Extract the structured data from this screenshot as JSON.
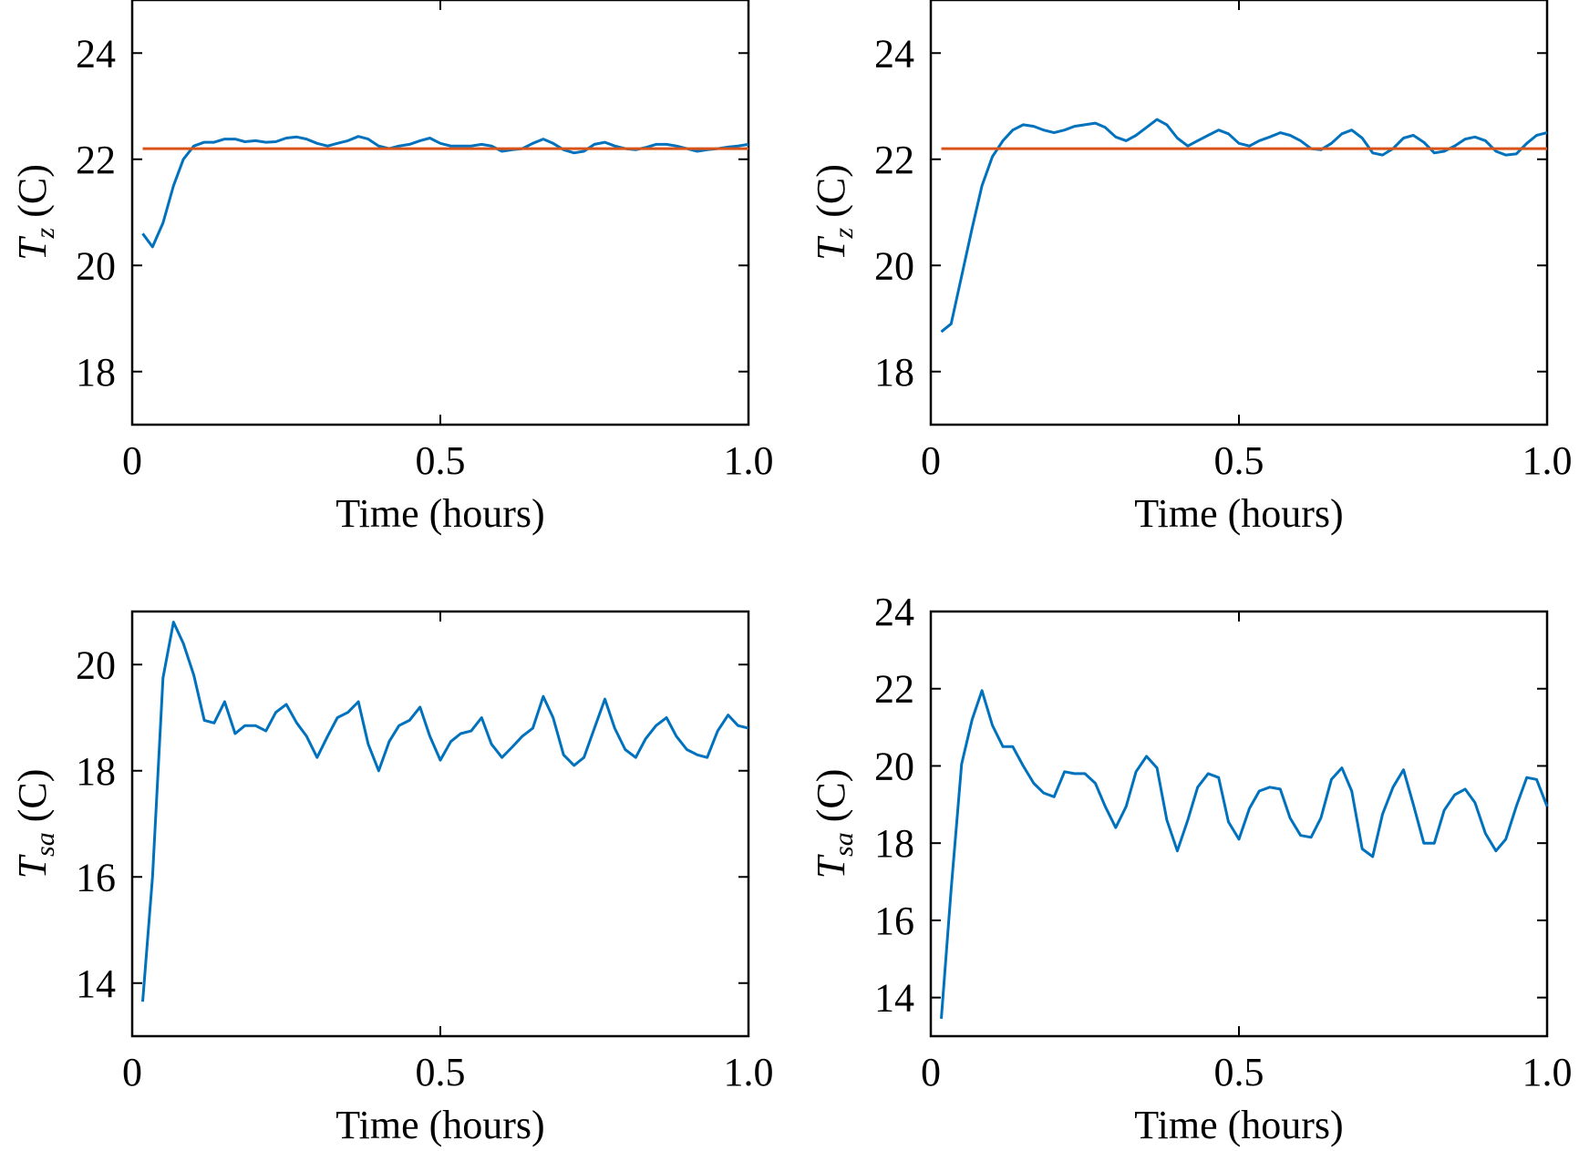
{
  "chart_data": [
    {
      "type": "line",
      "panel": "top-left",
      "xlabel": "Time (hours)",
      "ylabel": {
        "main": "T",
        "sub": "z",
        "unit": " (C)"
      },
      "xlim": [
        0,
        1.0
      ],
      "ylim": [
        17,
        25
      ],
      "xticks": [
        0,
        0.5,
        1.0
      ],
      "xtick_labels": [
        "0",
        "0.5",
        "1.0"
      ],
      "yticks": [
        18,
        20,
        22,
        24
      ],
      "ytick_labels": [
        "18",
        "20",
        "22",
        "24"
      ],
      "grid": false,
      "series": [
        {
          "color": "#0072BD",
          "x": [
            0.017,
            0.033,
            0.05,
            0.067,
            0.083,
            0.1,
            0.117,
            0.133,
            0.15,
            0.167,
            0.183,
            0.2,
            0.217,
            0.233,
            0.25,
            0.267,
            0.283,
            0.3,
            0.317,
            0.333,
            0.35,
            0.367,
            0.383,
            0.4,
            0.417,
            0.433,
            0.45,
            0.467,
            0.483,
            0.5,
            0.517,
            0.533,
            0.55,
            0.567,
            0.583,
            0.6,
            0.617,
            0.633,
            0.65,
            0.667,
            0.683,
            0.7,
            0.717,
            0.733,
            0.75,
            0.767,
            0.783,
            0.8,
            0.817,
            0.833,
            0.85,
            0.867,
            0.883,
            0.9,
            0.917,
            0.933,
            0.95,
            0.967,
            0.983,
            1.0
          ],
          "y": [
            20.6,
            20.35,
            20.8,
            21.5,
            22.0,
            22.25,
            22.32,
            22.32,
            22.38,
            22.38,
            22.33,
            22.35,
            22.32,
            22.33,
            22.4,
            22.42,
            22.38,
            22.3,
            22.25,
            22.3,
            22.35,
            22.43,
            22.38,
            22.25,
            22.2,
            22.25,
            22.28,
            22.35,
            22.4,
            22.3,
            22.25,
            22.25,
            22.25,
            22.28,
            22.25,
            22.15,
            22.18,
            22.2,
            22.3,
            22.38,
            22.3,
            22.18,
            22.12,
            22.15,
            22.28,
            22.32,
            22.25,
            22.2,
            22.18,
            22.22,
            22.28,
            22.28,
            22.25,
            22.2,
            22.15,
            22.18,
            22.2,
            22.23,
            22.25,
            22.28
          ]
        },
        {
          "color": "#D95319",
          "x": [
            0.017,
            1.0
          ],
          "y": [
            22.2,
            22.2
          ]
        }
      ]
    },
    {
      "type": "line",
      "panel": "top-right",
      "xlabel": "Time (hours)",
      "ylabel": {
        "main": "T",
        "sub": "z",
        "unit": " (C)"
      },
      "xlim": [
        0,
        1.0
      ],
      "ylim": [
        17,
        25
      ],
      "xticks": [
        0,
        0.5,
        1.0
      ],
      "xtick_labels": [
        "0",
        "0.5",
        "1.0"
      ],
      "yticks": [
        18,
        20,
        22,
        24
      ],
      "ytick_labels": [
        "18",
        "20",
        "22",
        "24"
      ],
      "grid": false,
      "series": [
        {
          "color": "#0072BD",
          "x": [
            0.017,
            0.033,
            0.05,
            0.067,
            0.083,
            0.1,
            0.117,
            0.133,
            0.15,
            0.167,
            0.183,
            0.2,
            0.217,
            0.233,
            0.25,
            0.267,
            0.283,
            0.3,
            0.317,
            0.333,
            0.35,
            0.367,
            0.383,
            0.4,
            0.417,
            0.433,
            0.45,
            0.467,
            0.483,
            0.5,
            0.517,
            0.533,
            0.55,
            0.567,
            0.583,
            0.6,
            0.617,
            0.633,
            0.65,
            0.667,
            0.683,
            0.7,
            0.717,
            0.733,
            0.75,
            0.767,
            0.783,
            0.8,
            0.817,
            0.833,
            0.85,
            0.867,
            0.883,
            0.9,
            0.917,
            0.933,
            0.95,
            0.967,
            0.983,
            1.0
          ],
          "y": [
            18.75,
            18.9,
            19.8,
            20.7,
            21.5,
            22.05,
            22.35,
            22.55,
            22.65,
            22.62,
            22.55,
            22.5,
            22.55,
            22.62,
            22.65,
            22.68,
            22.6,
            22.42,
            22.35,
            22.45,
            22.6,
            22.75,
            22.65,
            22.4,
            22.25,
            22.35,
            22.45,
            22.55,
            22.48,
            22.3,
            22.25,
            22.35,
            22.42,
            22.5,
            22.45,
            22.35,
            22.2,
            22.18,
            22.3,
            22.48,
            22.55,
            22.4,
            22.12,
            22.08,
            22.2,
            22.4,
            22.45,
            22.32,
            22.12,
            22.15,
            22.25,
            22.38,
            22.42,
            22.35,
            22.15,
            22.08,
            22.1,
            22.3,
            22.45,
            22.5
          ]
        },
        {
          "color": "#D95319",
          "x": [
            0.017,
            1.0
          ],
          "y": [
            22.2,
            22.2
          ]
        }
      ]
    },
    {
      "type": "line",
      "panel": "bottom-left",
      "xlabel": "Time (hours)",
      "ylabel": {
        "main": "T",
        "sub": "sa",
        "unit": " (C)"
      },
      "xlim": [
        0,
        1.0
      ],
      "ylim": [
        13,
        21
      ],
      "xticks": [
        0,
        0.5,
        1.0
      ],
      "xtick_labels": [
        "0",
        "0.5",
        "1.0"
      ],
      "yticks": [
        14,
        16,
        18,
        20
      ],
      "ytick_labels": [
        "14",
        "16",
        "18",
        "20"
      ],
      "grid": false,
      "series": [
        {
          "color": "#0072BD",
          "x": [
            0.017,
            0.033,
            0.05,
            0.067,
            0.083,
            0.1,
            0.117,
            0.133,
            0.15,
            0.167,
            0.183,
            0.2,
            0.217,
            0.233,
            0.25,
            0.267,
            0.283,
            0.3,
            0.317,
            0.333,
            0.35,
            0.367,
            0.383,
            0.4,
            0.417,
            0.433,
            0.45,
            0.467,
            0.483,
            0.5,
            0.517,
            0.533,
            0.55,
            0.567,
            0.583,
            0.6,
            0.617,
            0.633,
            0.65,
            0.667,
            0.683,
            0.7,
            0.717,
            0.733,
            0.75,
            0.767,
            0.783,
            0.8,
            0.817,
            0.833,
            0.85,
            0.867,
            0.883,
            0.9,
            0.917,
            0.933,
            0.95,
            0.967,
            0.983,
            1.0
          ],
          "y": [
            13.65,
            16.0,
            19.75,
            20.8,
            20.4,
            19.8,
            18.95,
            18.9,
            19.3,
            18.7,
            18.85,
            18.85,
            18.75,
            19.1,
            19.25,
            18.9,
            18.65,
            18.25,
            18.65,
            19.0,
            19.1,
            19.3,
            18.5,
            18.0,
            18.55,
            18.85,
            18.95,
            19.2,
            18.65,
            18.2,
            18.55,
            18.7,
            18.75,
            19.0,
            18.5,
            18.25,
            18.45,
            18.65,
            18.8,
            19.4,
            19.0,
            18.3,
            18.1,
            18.25,
            18.8,
            19.35,
            18.8,
            18.4,
            18.25,
            18.6,
            18.85,
            19.0,
            18.65,
            18.4,
            18.3,
            18.25,
            18.75,
            19.05,
            18.85,
            18.8
          ]
        }
      ]
    },
    {
      "type": "line",
      "panel": "bottom-right",
      "xlabel": "Time (hours)",
      "ylabel": {
        "main": "T",
        "sub": "sa",
        "unit": " (C)"
      },
      "xlim": [
        0,
        1.0
      ],
      "ylim": [
        13,
        24
      ],
      "xticks": [
        0,
        0.5,
        1.0
      ],
      "xtick_labels": [
        "0",
        "0.5",
        "1.0"
      ],
      "yticks": [
        14,
        16,
        18,
        20,
        22,
        24
      ],
      "ytick_labels": [
        "14",
        "16",
        "18",
        "20",
        "22",
        "24"
      ],
      "grid": false,
      "series": [
        {
          "color": "#0072BD",
          "x": [
            0.017,
            0.033,
            0.05,
            0.067,
            0.083,
            0.1,
            0.117,
            0.133,
            0.15,
            0.167,
            0.183,
            0.2,
            0.217,
            0.233,
            0.25,
            0.267,
            0.283,
            0.3,
            0.317,
            0.333,
            0.35,
            0.367,
            0.383,
            0.4,
            0.417,
            0.433,
            0.45,
            0.467,
            0.483,
            0.5,
            0.517,
            0.533,
            0.55,
            0.567,
            0.583,
            0.6,
            0.617,
            0.633,
            0.65,
            0.667,
            0.683,
            0.7,
            0.717,
            0.733,
            0.75,
            0.767,
            0.783,
            0.8,
            0.817,
            0.833,
            0.85,
            0.867,
            0.883,
            0.9,
            0.917,
            0.933,
            0.95,
            0.967,
            0.983,
            1.0
          ],
          "y": [
            13.45,
            16.8,
            20.05,
            21.2,
            21.95,
            21.05,
            20.5,
            20.5,
            20.0,
            19.55,
            19.3,
            19.2,
            19.85,
            19.8,
            19.8,
            19.55,
            18.95,
            18.4,
            18.95,
            19.85,
            20.25,
            19.95,
            18.6,
            17.8,
            18.6,
            19.45,
            19.8,
            19.7,
            18.55,
            18.1,
            18.9,
            19.35,
            19.45,
            19.4,
            18.65,
            18.2,
            18.15,
            18.65,
            19.65,
            19.95,
            19.35,
            17.85,
            17.65,
            18.75,
            19.45,
            19.9,
            19.0,
            18.0,
            18.0,
            18.85,
            19.25,
            19.4,
            19.05,
            18.25,
            17.8,
            18.1,
            18.95,
            19.7,
            19.65,
            18.95
          ]
        }
      ]
    }
  ]
}
